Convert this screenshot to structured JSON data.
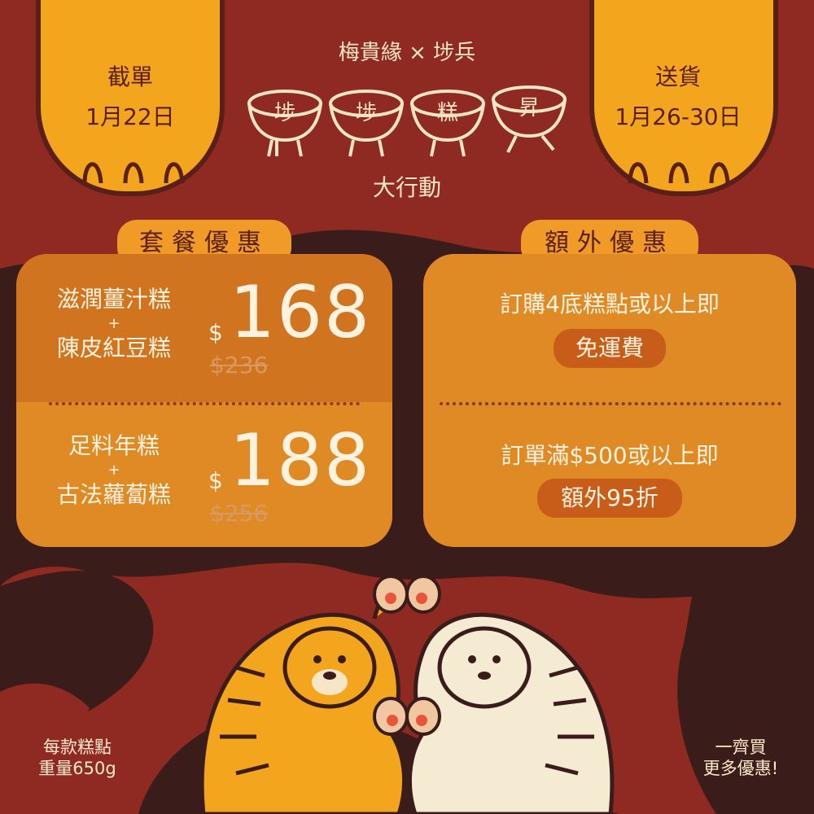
{
  "colors": {
    "background": "#8e2a22",
    "dark_stripe": "#3a1d1a",
    "card_left": "#d0741f",
    "card_right": "#e08a25",
    "tiger_orange": "#f3a51d",
    "tiger_white": "#f5ead2",
    "ink": "#5a1f17"
  },
  "header": {
    "left_label": "截單",
    "left_date": "1月22日",
    "right_label": "送貨",
    "right_date": "1月26-30日",
    "collab": "梅貴緣 × 埗兵",
    "bowls": [
      "埗",
      "埗",
      "糕",
      "昇"
    ],
    "subtitle": "大行動"
  },
  "sections": {
    "combo_title": "套餐優惠",
    "extra_title": "額外優惠"
  },
  "combos": [
    {
      "line1": "滋潤薑汁糕",
      "plus": "+",
      "line2": "陳皮紅豆糕",
      "currency": "$",
      "price": "168",
      "original": "$236"
    },
    {
      "line1": "足料年糕",
      "plus": "+",
      "line2": "古法蘿蔔糕",
      "currency": "$",
      "price": "188",
      "original": "$256"
    }
  ],
  "offers": [
    {
      "text": "訂購4底糕點或以上即",
      "pill": "免運費"
    },
    {
      "text": "訂單滿$500或以上即",
      "pill": "額外95折"
    }
  ],
  "footer": {
    "left_line1": "每款糕點",
    "left_line2": "重量650g",
    "right_line1": "一齊買",
    "right_line2": "更多優惠!"
  },
  "icons": [
    "tiger-paw-icon",
    "rice-bowl-icon",
    "orange-tiger-illustration",
    "white-tiger-illustration"
  ]
}
